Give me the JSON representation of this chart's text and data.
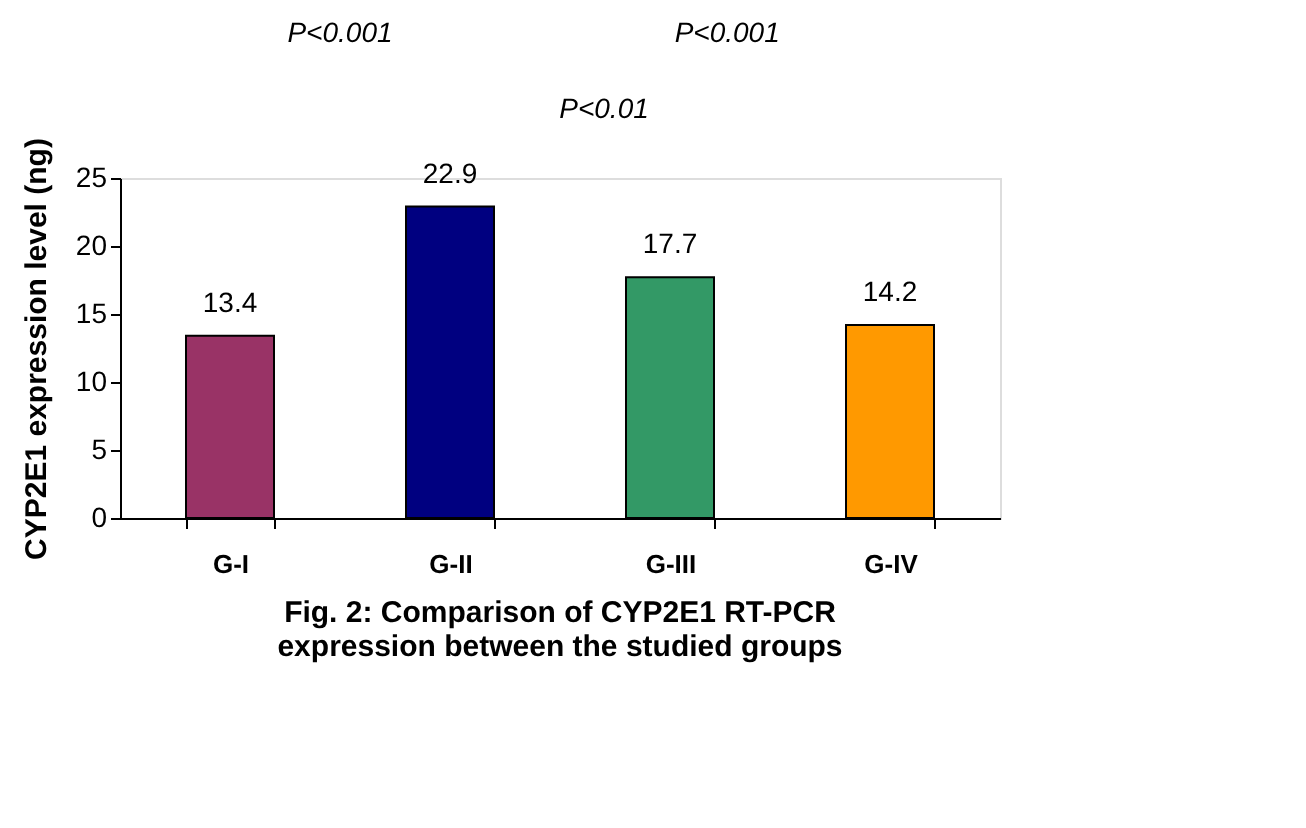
{
  "chart_data": {
    "type": "bar",
    "title": "Fig. 2: Comparison of CYP2E1 RT-PCR expression between the studied groups",
    "ylabel": "CYP2E1 expression level (ng)",
    "categories": [
      "G-I",
      "G-II",
      "G-III",
      "G-IV"
    ],
    "values": [
      13.4,
      22.9,
      17.7,
      14.2
    ],
    "colors": [
      "#993366",
      "#000080",
      "#339966",
      "#ff9900"
    ],
    "ylim": [
      0,
      25
    ],
    "yticks": [
      0,
      5,
      10,
      15,
      20,
      25
    ],
    "data_labels": true,
    "grid": false,
    "annotations": [
      "P<0.001",
      "P<0.001",
      "P<0.01"
    ]
  }
}
